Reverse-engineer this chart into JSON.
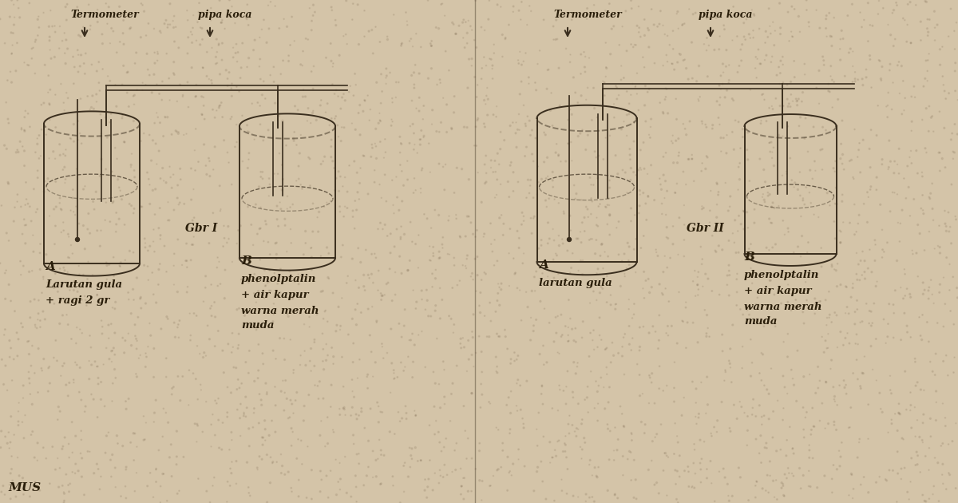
{
  "bg_color": "#d4c4a8",
  "line_color": "#3a2e1e",
  "text_color": "#2a1e0a",
  "fig_width": 12.0,
  "fig_height": 6.3,
  "gbr1_label": "Gbr I",
  "gbr2_label": "Gbr II",
  "label_A1": "A",
  "label_B1": "B",
  "label_A2": "A",
  "label_B2": "B",
  "text_termometer1": "Termometer",
  "text_pipa_kaca1": "pipa koca",
  "text_termometer2": "Termometer",
  "text_pipa_kaca2": "pipa koca",
  "text_A1_desc1": "Larutan gula",
  "text_A1_desc2": "+ ragi 2 gr",
  "text_B1_desc1": "phenolptalin",
  "text_B1_desc2": "+ air kapur",
  "text_B1_desc3": "warna merah",
  "text_B1_desc4": "muda",
  "text_A2_desc1": "larutan gula",
  "text_B2_desc1": "phenolptalin",
  "text_B2_desc2": "+ air kapur",
  "text_B2_desc3": "warna merah",
  "text_B2_desc4": "muda",
  "mus_text": "MUS"
}
